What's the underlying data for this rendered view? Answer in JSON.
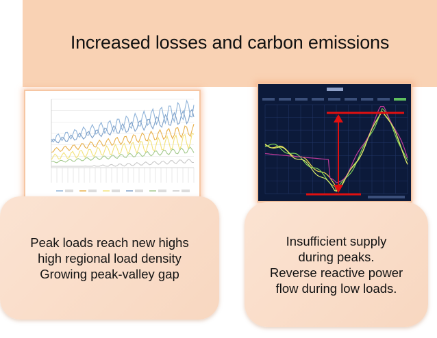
{
  "banner": {
    "title": "Increased losses and carbon emissions"
  },
  "left_card": {
    "lines": [
      "Peak loads reach new highs",
      "high regional load density",
      "Growing peak-valley gap"
    ]
  },
  "right_card": {
    "lines": [
      "Insufficient supply",
      "during peaks.",
      "Reverse reactive power",
      "flow during low loads."
    ]
  },
  "colors": {
    "banner_bg": "#f9d2b4",
    "card_bg": "#f8d9c4",
    "peak_marker": "#e01010",
    "dark_chart_bg": "#0c1a3a"
  },
  "left_figure": {
    "series_count": 6,
    "series_colors": [
      "#8fb3d9",
      "#e8b04a",
      "#f3e27a",
      "#7fa1c8",
      "#a3c98c",
      "#c9c9c9"
    ]
  },
  "right_figure": {
    "series_colors": [
      "#f0e050",
      "#7fd35a",
      "#c03a9a",
      "#d9e86a"
    ]
  }
}
